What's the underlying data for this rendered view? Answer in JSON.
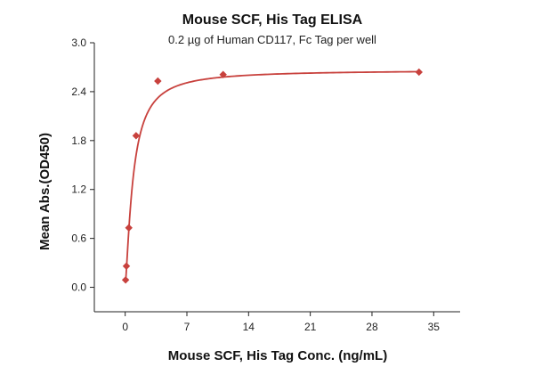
{
  "chart_data": {
    "type": "scatter",
    "title": "Mouse SCF, His Tag ELISA",
    "subtitle": "0.2 µg of Human CD117, Fc Tag per well",
    "xlabel": "Mouse SCF, His Tag Conc. (ng/mL)",
    "ylabel": "Mean Abs.(OD450)",
    "xlim": [
      -3.5,
      38
    ],
    "ylim": [
      -0.3,
      3.0
    ],
    "xticks": [
      0,
      7,
      14,
      21,
      28,
      35
    ],
    "yticks": [
      0.0,
      0.6,
      1.2,
      1.8,
      2.4,
      3.0
    ],
    "ytick_labels": [
      "0.0",
      "0.6",
      "1.2",
      "1.8",
      "2.4",
      "3.0"
    ],
    "grid": false,
    "series": [
      {
        "x": [
          0.046,
          0.137,
          0.412,
          1.235,
          3.704,
          11.111,
          33.333
        ],
        "y": [
          0.09,
          0.26,
          0.73,
          1.86,
          2.53,
          2.61,
          2.64
        ],
        "fit": {
          "model": "4PL",
          "bottom": 0.02,
          "top": 2.665,
          "ec50": 0.9,
          "hill": 1.35
        }
      }
    ],
    "colors": {
      "series": "#c8413d",
      "axis": "#222222"
    }
  }
}
